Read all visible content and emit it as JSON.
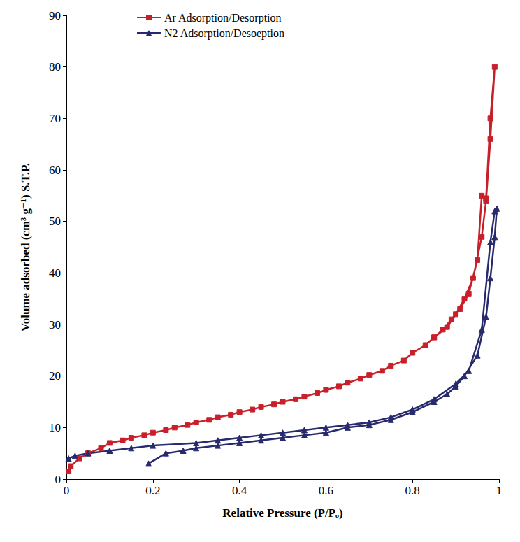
{
  "chart_data": {
    "type": "line",
    "x_label": "Relative Pressure (P/Pₒ)",
    "y_label": "Volume adsorbed (cm³ g⁻¹) S.T.P.",
    "xlim": [
      0,
      1
    ],
    "xticks": [
      0,
      0.2,
      0.4,
      0.6,
      0.8,
      1
    ],
    "ylim": [
      0,
      90
    ],
    "yticks": [
      0,
      10,
      20,
      30,
      40,
      50,
      60,
      70,
      80,
      90
    ],
    "grid": false,
    "legend": "top",
    "series": [
      {
        "name": "Ar Adsorption/Desorption",
        "color": "#c8202a",
        "marker": "square",
        "x": [
          0.005,
          0.01,
          0.03,
          0.05,
          0.08,
          0.1,
          0.13,
          0.15,
          0.18,
          0.2,
          0.23,
          0.25,
          0.28,
          0.3,
          0.33,
          0.35,
          0.38,
          0.4,
          0.43,
          0.45,
          0.48,
          0.5,
          0.53,
          0.55,
          0.58,
          0.6,
          0.63,
          0.65,
          0.68,
          0.7,
          0.73,
          0.75,
          0.78,
          0.8,
          0.83,
          0.85,
          0.88,
          0.9,
          0.92,
          0.94,
          0.96,
          0.97,
          0.98,
          0.99,
          0.98,
          0.97,
          0.96,
          0.95,
          0.93,
          0.91,
          0.89,
          0.87,
          0.85
        ],
        "values": [
          1.5,
          2.5,
          4,
          5,
          6,
          7,
          7.5,
          8,
          8.5,
          9,
          9.5,
          10,
          10.5,
          11,
          11.5,
          12,
          12.5,
          13,
          13.5,
          14,
          14.5,
          15,
          15.5,
          16,
          16.7,
          17.3,
          18,
          18.7,
          19.5,
          20.2,
          21,
          22,
          23,
          24.5,
          26,
          27.5,
          29.5,
          32,
          35,
          39,
          47,
          54,
          66,
          80,
          70,
          54.5,
          55,
          42.5,
          36,
          33,
          31,
          29,
          27.5
        ]
      },
      {
        "name": "N2 Adsorption/Desoeption",
        "color": "#282a6e",
        "marker": "triangle",
        "x": [
          0.19,
          0.23,
          0.27,
          0.3,
          0.35,
          0.4,
          0.45,
          0.5,
          0.55,
          0.6,
          0.65,
          0.7,
          0.75,
          0.8,
          0.85,
          0.88,
          0.9,
          0.92,
          0.95,
          0.97,
          0.98,
          0.99,
          0.995,
          0.99,
          0.98,
          0.96,
          0.93,
          0.9,
          0.85,
          0.8,
          0.75,
          0.7,
          0.65,
          0.6,
          0.55,
          0.5,
          0.45,
          0.4,
          0.35,
          0.3,
          0.2,
          0.15,
          0.1,
          0.05,
          0.02,
          0.005
        ],
        "values": [
          3,
          5,
          5.5,
          6,
          6.5,
          7,
          7.5,
          8,
          8.5,
          9,
          10,
          10.5,
          11.5,
          13,
          15,
          16.5,
          18,
          20,
          24,
          31.5,
          39,
          47,
          52.5,
          52,
          46,
          29,
          21,
          18.5,
          15.5,
          13.5,
          12,
          11,
          10.5,
          10,
          9.5,
          9,
          8.5,
          8,
          7.5,
          7,
          6.5,
          6,
          5.5,
          5,
          4.5,
          4
        ]
      }
    ]
  }
}
